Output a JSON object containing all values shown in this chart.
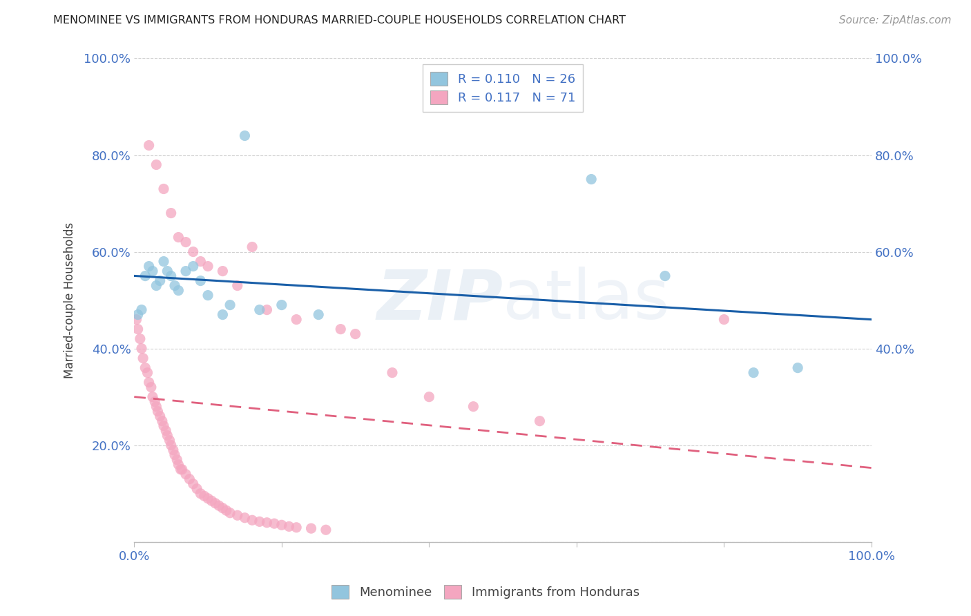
{
  "title": "MENOMINEE VS IMMIGRANTS FROM HONDURAS MARRIED-COUPLE HOUSEHOLDS CORRELATION CHART",
  "source": "Source: ZipAtlas.com",
  "ylabel": "Married-couple Households",
  "legend_label1": "Menominee",
  "legend_label2": "Immigrants from Honduras",
  "R1": "0.110",
  "N1": "26",
  "R2": "0.117",
  "N2": "71",
  "watermark_zip": "ZIP",
  "watermark_atlas": "atlas",
  "blue_color": "#92c5de",
  "pink_color": "#f4a6c0",
  "blue_line_color": "#1a5fa8",
  "pink_line_color": "#e0607e",
  "menominee_x": [
    0.5,
    1.0,
    1.5,
    2.0,
    2.5,
    3.0,
    3.5,
    4.0,
    4.5,
    5.0,
    5.5,
    6.0,
    7.0,
    8.0,
    9.0,
    10.0,
    12.0,
    13.0,
    15.0,
    17.0,
    20.0,
    25.0,
    62.0,
    72.0,
    84.0,
    90.0
  ],
  "menominee_y": [
    47.0,
    48.0,
    55.0,
    57.0,
    56.0,
    53.0,
    54.0,
    58.0,
    56.0,
    55.0,
    53.0,
    52.0,
    56.0,
    57.0,
    54.0,
    51.0,
    47.0,
    49.0,
    84.0,
    48.0,
    49.0,
    47.0,
    75.0,
    55.0,
    35.0,
    36.0
  ],
  "honduras_x": [
    0.3,
    0.5,
    0.8,
    1.0,
    1.2,
    1.5,
    1.8,
    2.0,
    2.3,
    2.5,
    2.8,
    3.0,
    3.2,
    3.5,
    3.8,
    4.0,
    4.3,
    4.5,
    4.8,
    5.0,
    5.3,
    5.5,
    5.8,
    6.0,
    6.3,
    6.5,
    7.0,
    7.5,
    8.0,
    8.5,
    9.0,
    9.5,
    10.0,
    10.5,
    11.0,
    11.5,
    12.0,
    12.5,
    13.0,
    14.0,
    15.0,
    16.0,
    17.0,
    18.0,
    19.0,
    20.0,
    21.0,
    22.0,
    24.0,
    26.0,
    2.0,
    3.0,
    4.0,
    5.0,
    6.0,
    7.0,
    8.0,
    9.0,
    10.0,
    12.0,
    14.0,
    16.0,
    18.0,
    22.0,
    28.0,
    30.0,
    35.0,
    40.0,
    46.0,
    55.0,
    80.0
  ],
  "honduras_y": [
    46.0,
    44.0,
    42.0,
    40.0,
    38.0,
    36.0,
    35.0,
    33.0,
    32.0,
    30.0,
    29.0,
    28.0,
    27.0,
    26.0,
    25.0,
    24.0,
    23.0,
    22.0,
    21.0,
    20.0,
    19.0,
    18.0,
    17.0,
    16.0,
    15.0,
    15.0,
    14.0,
    13.0,
    12.0,
    11.0,
    10.0,
    9.5,
    9.0,
    8.5,
    8.0,
    7.5,
    7.0,
    6.5,
    6.0,
    5.5,
    5.0,
    4.5,
    4.2,
    4.0,
    3.8,
    3.5,
    3.2,
    3.0,
    2.8,
    2.5,
    82.0,
    78.0,
    73.0,
    68.0,
    63.0,
    62.0,
    60.0,
    58.0,
    57.0,
    56.0,
    53.0,
    61.0,
    48.0,
    46.0,
    44.0,
    43.0,
    35.0,
    30.0,
    28.0,
    25.0,
    46.0
  ],
  "xlim": [
    0,
    100
  ],
  "ylim": [
    0,
    100
  ],
  "yticks": [
    20,
    40,
    60,
    80,
    100
  ],
  "background_color": "#ffffff",
  "grid_color": "#d0d0d0"
}
